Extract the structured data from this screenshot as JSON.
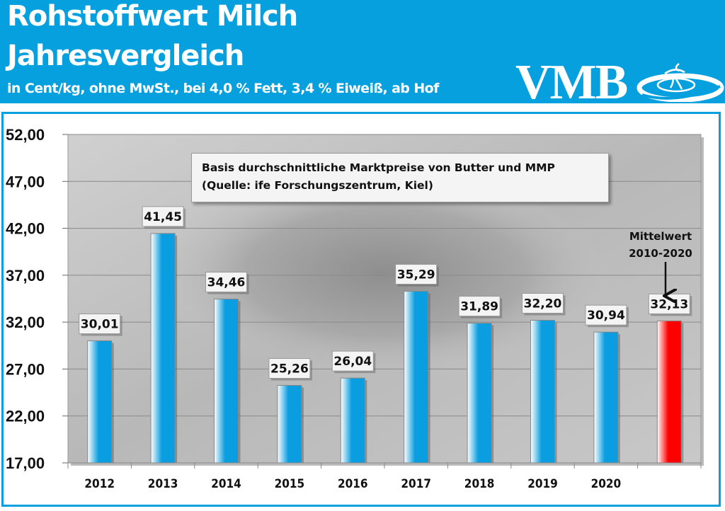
{
  "header": {
    "title_line1": "Rohstoffwert Milch",
    "title_line2": "Jahresvergleich",
    "subtitle": "in Cent/kg, ohne MwSt., bei 4,0 % Fett, 3,4 % Eiweiß, ab Hof",
    "logo_text": "VMB",
    "logo_icon": "vmb-swirl-logo"
  },
  "colors": {
    "header_bg": "#06a0df",
    "bar_blue": "#0a9ee0",
    "bar_red": "#ff0000",
    "frame": "#06a0df"
  },
  "note": {
    "line1": "Basis durchschnittliche  Marktpreise von Butter und MMP",
    "line2": "(Quelle: ife Forschungszentrum,  Kiel)"
  },
  "annotation": {
    "line1": "Mittelwert",
    "line2": "2010-2020",
    "arrow_icon": "arrow-down-icon"
  },
  "chart_data": {
    "type": "bar",
    "title": "Rohstoffwert Milch Jahresvergleich",
    "xlabel": "",
    "ylabel": "",
    "ylim": [
      17,
      52
    ],
    "yticks": [
      "52,00",
      "47,00",
      "42,00",
      "37,00",
      "32,00",
      "27,00",
      "22,00",
      "17,00"
    ],
    "ytick_values": [
      52,
      47,
      42,
      37,
      32,
      27,
      22,
      17
    ],
    "grid": true,
    "categories": [
      "2012",
      "2013",
      "2014",
      "2015",
      "2016",
      "2017",
      "2018",
      "2019",
      "2020",
      ""
    ],
    "values": [
      30.01,
      41.45,
      34.46,
      25.26,
      26.04,
      35.29,
      31.89,
      32.2,
      30.94,
      32.13
    ],
    "data_labels": [
      "30,01",
      "41,45",
      "34,46",
      "25,26",
      "26,04",
      "35,29",
      "31,89",
      "32,20",
      "30,94",
      "32,13"
    ],
    "highlight": [
      false,
      false,
      false,
      false,
      false,
      false,
      false,
      false,
      false,
      true
    ]
  }
}
